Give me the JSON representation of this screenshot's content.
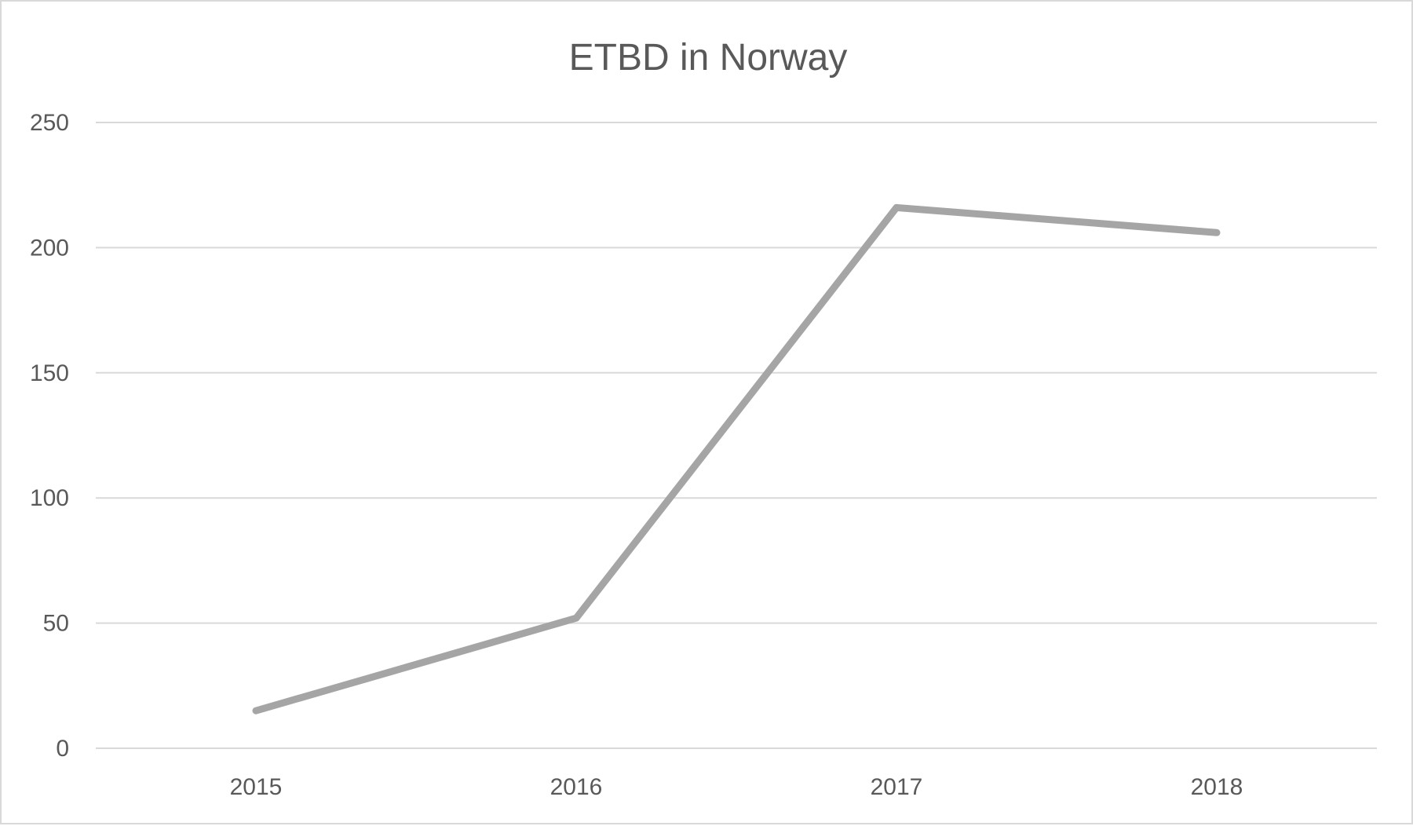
{
  "chart_data": {
    "type": "line",
    "title": "ETBD in Norway",
    "xlabel": "",
    "ylabel": "",
    "categories": [
      "2015",
      "2016",
      "2017",
      "2018"
    ],
    "series": [
      {
        "values": [
          15,
          52,
          216,
          206
        ]
      }
    ],
    "ylim": [
      0,
      250
    ],
    "yticks": [
      0,
      50,
      100,
      150,
      200,
      250
    ],
    "grid": true,
    "legend": "none",
    "colors": {
      "line": "#a5a5a5",
      "grid": "#d9d9d9",
      "text": "#595959"
    }
  }
}
